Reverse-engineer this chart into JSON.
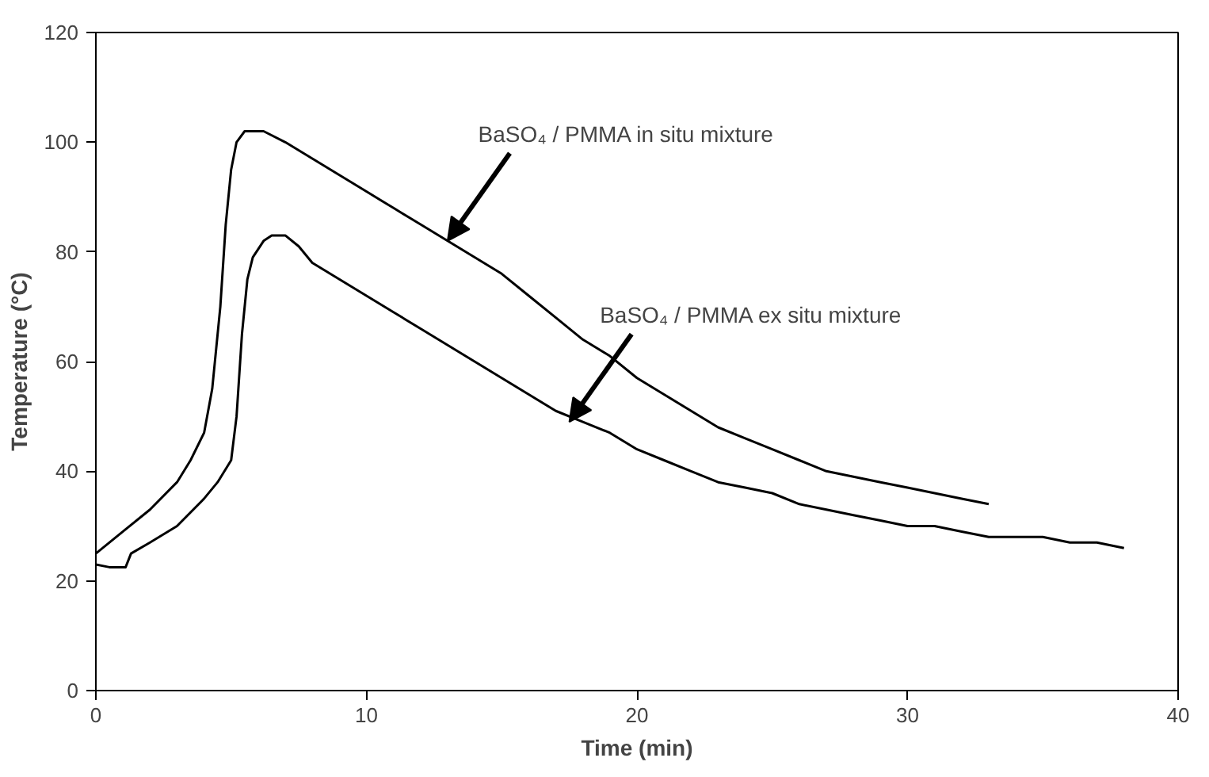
{
  "chart_data": {
    "type": "line",
    "xlabel": "Time (min)",
    "ylabel": "Temperature (°C)",
    "xlim": [
      0,
      40
    ],
    "ylim": [
      0,
      120
    ],
    "xticks": [
      0,
      10,
      20,
      30,
      40
    ],
    "yticks": [
      0,
      20,
      40,
      60,
      80,
      100,
      120
    ],
    "grid": false,
    "marker": "none",
    "line_style": "solid",
    "series": [
      {
        "color": "#000000",
        "x": [
          0,
          1,
          2,
          3,
          3.5,
          4,
          4.3,
          4.6,
          4.8,
          5,
          5.2,
          5.5,
          6.2,
          7,
          8,
          9,
          10,
          11,
          12,
          13,
          14,
          15,
          16,
          17,
          18,
          19,
          20,
          21,
          22,
          23,
          24,
          25,
          26,
          27,
          28,
          29,
          30,
          31,
          32,
          33
        ],
        "values": [
          25,
          29,
          33,
          38,
          42,
          47,
          55,
          70,
          85,
          95,
          100,
          102,
          102,
          100,
          97,
          94,
          91,
          88,
          85,
          82,
          79,
          76,
          72,
          68,
          64,
          61,
          57,
          54,
          51,
          48,
          46,
          44,
          42,
          40,
          39,
          38,
          37,
          36,
          35,
          34
        ]
      },
      {
        "color": "#000000",
        "x": [
          0,
          0.5,
          1.1,
          1.3,
          2,
          3,
          4,
          4.5,
          5,
          5.2,
          5.4,
          5.6,
          5.8,
          6.2,
          6.5,
          7,
          7.5,
          8,
          9,
          10,
          11,
          12,
          13,
          14,
          15,
          16,
          17,
          18,
          19,
          20,
          21,
          22,
          23,
          24,
          25,
          26,
          27,
          28,
          29,
          30,
          31,
          32,
          33,
          34,
          35,
          36,
          37,
          38
        ],
        "values": [
          23,
          22.5,
          22.5,
          25,
          27,
          30,
          35,
          38,
          42,
          50,
          65,
          75,
          79,
          82,
          83,
          83,
          81,
          78,
          75,
          72,
          69,
          66,
          63,
          60,
          57,
          54,
          51,
          49,
          47,
          44,
          42,
          40,
          38,
          37,
          36,
          34,
          33,
          32,
          31,
          30,
          30,
          29,
          28,
          28,
          28,
          27,
          27,
          26
        ]
      }
    ],
    "annotations": [
      {
        "text": "BaSO₄ / PMMA in situ mixture",
        "x": 13,
        "y": 82
      },
      {
        "text": "BaSO₄ / PMMA ex situ mixture",
        "x": 17.5,
        "y": 49
      }
    ]
  }
}
